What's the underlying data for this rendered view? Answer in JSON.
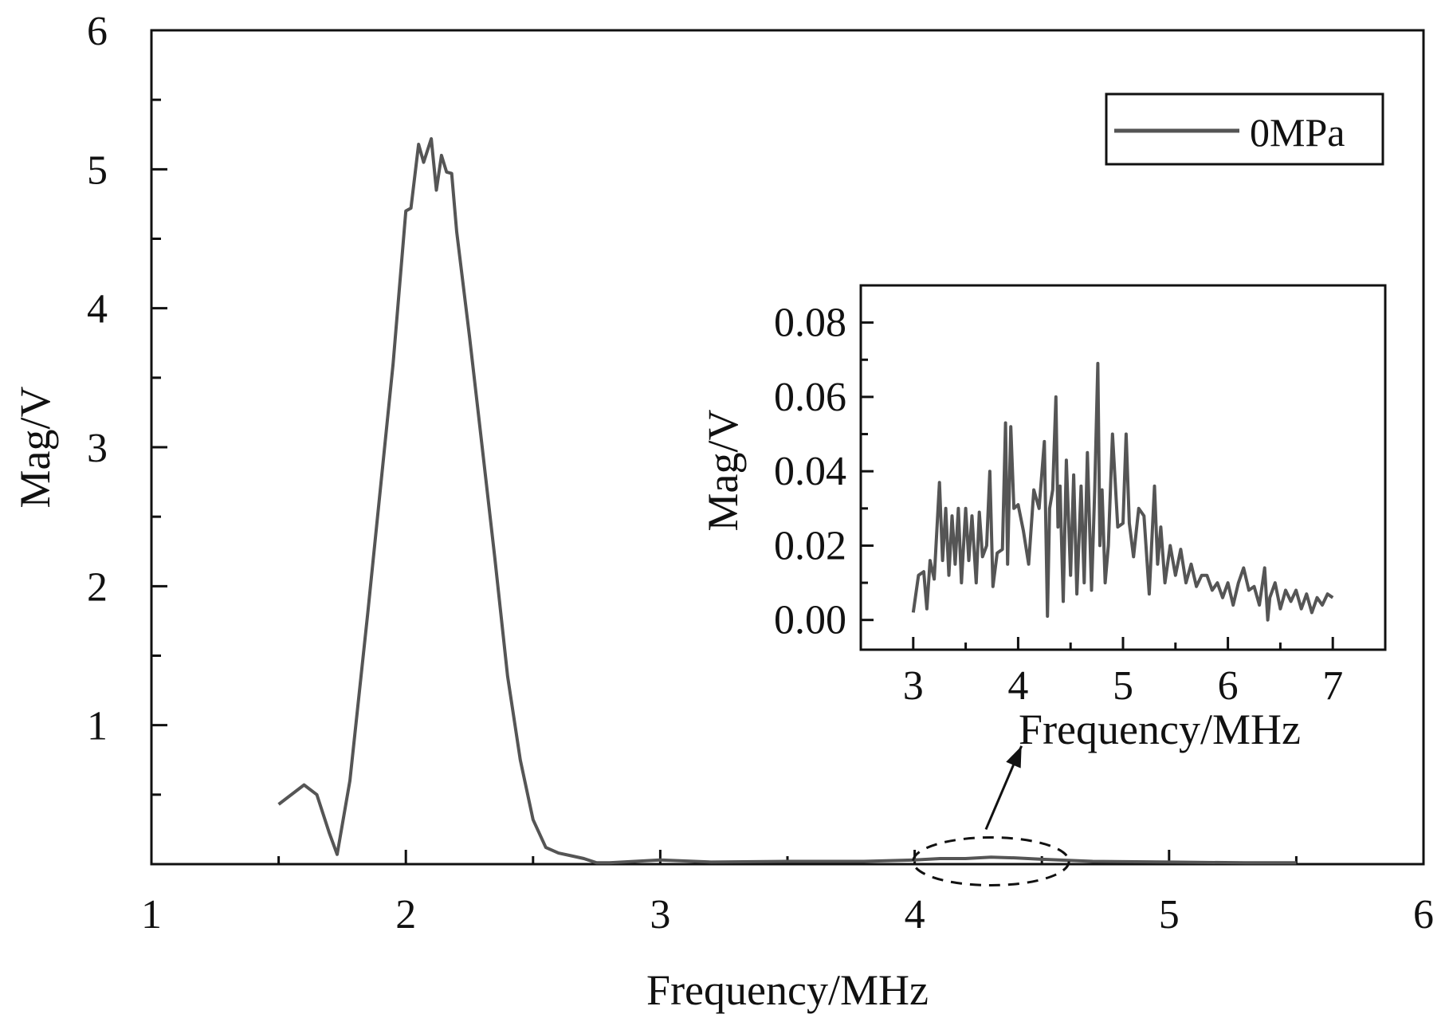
{
  "colors": {
    "series": "#555555",
    "axes": "#111111",
    "background": "#ffffff"
  },
  "chart_data": [
    {
      "type": "line",
      "name": "main-spectrum",
      "title": "",
      "xlabel": "Frequency/MHz",
      "ylabel": "Mag/V",
      "xlim": [
        1,
        6
      ],
      "ylim": [
        0,
        6
      ],
      "xticks": [
        1,
        2,
        3,
        4,
        5,
        6
      ],
      "yticks": [
        1,
        2,
        3,
        4,
        5,
        6
      ],
      "legend": {
        "position": "top-right",
        "entries": [
          "0MPa"
        ]
      },
      "grid": false,
      "series": [
        {
          "name": "0MPa",
          "x": [
            1.5,
            1.6,
            1.65,
            1.7,
            1.73,
            1.78,
            1.85,
            1.95,
            2.0,
            2.02,
            2.05,
            2.07,
            2.1,
            2.12,
            2.14,
            2.16,
            2.18,
            2.2,
            2.25,
            2.3,
            2.35,
            2.4,
            2.45,
            2.5,
            2.55,
            2.6,
            2.65,
            2.7,
            2.75,
            2.8,
            2.9,
            3.0,
            3.2,
            3.5,
            3.8,
            4.0,
            4.1,
            4.2,
            4.3,
            4.4,
            4.5,
            4.7,
            5.0,
            5.3,
            5.5
          ],
          "values": [
            0.43,
            0.57,
            0.5,
            0.22,
            0.07,
            0.6,
            1.8,
            3.6,
            4.7,
            4.72,
            5.18,
            5.05,
            5.22,
            4.85,
            5.1,
            4.98,
            4.97,
            4.55,
            3.8,
            3.0,
            2.2,
            1.35,
            0.75,
            0.32,
            0.12,
            0.08,
            0.06,
            0.04,
            0.01,
            0.01,
            0.02,
            0.03,
            0.015,
            0.02,
            0.02,
            0.03,
            0.04,
            0.04,
            0.05,
            0.045,
            0.035,
            0.02,
            0.015,
            0.01,
            0.01
          ]
        }
      ],
      "annotations": [
        {
          "type": "dashed-ellipse",
          "center": [
            4.3,
            0.02
          ],
          "note": "region magnified in inset"
        },
        {
          "type": "arrow",
          "from": [
            4.28,
            0.25
          ],
          "to": [
            4.42,
            0.85
          ],
          "note": "points to inset"
        }
      ]
    },
    {
      "type": "line",
      "name": "inset-spectrum",
      "title": "",
      "xlabel": "Frequency/MHz",
      "ylabel": "Mag/V",
      "xlim": [
        2.5,
        7.5
      ],
      "ylim": [
        -0.008,
        0.09
      ],
      "xticks": [
        3,
        4,
        5,
        6,
        7
      ],
      "yticks": [
        0.0,
        0.02,
        0.04,
        0.06,
        0.08
      ],
      "ytick_labels": [
        "0.00",
        "0.02",
        "0.04",
        "0.06",
        "0.08"
      ],
      "grid": false,
      "series": [
        {
          "name": "0MPa",
          "x": [
            3.0,
            3.05,
            3.1,
            3.13,
            3.16,
            3.2,
            3.25,
            3.28,
            3.31,
            3.34,
            3.37,
            3.4,
            3.43,
            3.46,
            3.5,
            3.53,
            3.56,
            3.6,
            3.63,
            3.66,
            3.7,
            3.73,
            3.76,
            3.8,
            3.85,
            3.88,
            3.9,
            3.93,
            3.96,
            4.0,
            4.05,
            4.1,
            4.15,
            4.2,
            4.25,
            4.28,
            4.3,
            4.33,
            4.36,
            4.38,
            4.4,
            4.43,
            4.46,
            4.5,
            4.53,
            4.56,
            4.6,
            4.63,
            4.66,
            4.7,
            4.73,
            4.76,
            4.78,
            4.8,
            4.83,
            4.86,
            4.9,
            4.95,
            5.0,
            5.03,
            5.06,
            5.1,
            5.15,
            5.2,
            5.25,
            5.3,
            5.33,
            5.36,
            5.4,
            5.45,
            5.5,
            5.55,
            5.6,
            5.65,
            5.7,
            5.75,
            5.8,
            5.85,
            5.9,
            5.95,
            6.0,
            6.05,
            6.1,
            6.15,
            6.2,
            6.25,
            6.3,
            6.35,
            6.38,
            6.4,
            6.45,
            6.5,
            6.55,
            6.6,
            6.65,
            6.7,
            6.75,
            6.8,
            6.85,
            6.9,
            6.95,
            7.0
          ],
          "values": [
            0.002,
            0.012,
            0.013,
            0.003,
            0.016,
            0.011,
            0.037,
            0.016,
            0.03,
            0.012,
            0.028,
            0.015,
            0.03,
            0.01,
            0.03,
            0.016,
            0.028,
            0.01,
            0.029,
            0.017,
            0.02,
            0.04,
            0.009,
            0.018,
            0.019,
            0.053,
            0.015,
            0.052,
            0.03,
            0.031,
            0.024,
            0.015,
            0.035,
            0.03,
            0.048,
            0.001,
            0.03,
            0.035,
            0.06,
            0.025,
            0.036,
            0.005,
            0.043,
            0.012,
            0.039,
            0.007,
            0.036,
            0.01,
            0.045,
            0.008,
            0.035,
            0.069,
            0.02,
            0.035,
            0.01,
            0.02,
            0.05,
            0.025,
            0.026,
            0.05,
            0.026,
            0.017,
            0.03,
            0.028,
            0.007,
            0.036,
            0.015,
            0.025,
            0.01,
            0.02,
            0.012,
            0.019,
            0.01,
            0.015,
            0.009,
            0.012,
            0.012,
            0.008,
            0.01,
            0.006,
            0.01,
            0.004,
            0.01,
            0.014,
            0.008,
            0.009,
            0.004,
            0.014,
            0.0,
            0.006,
            0.01,
            0.003,
            0.008,
            0.005,
            0.008,
            0.003,
            0.007,
            0.002,
            0.006,
            0.004,
            0.007,
            0.006
          ]
        }
      ]
    }
  ]
}
